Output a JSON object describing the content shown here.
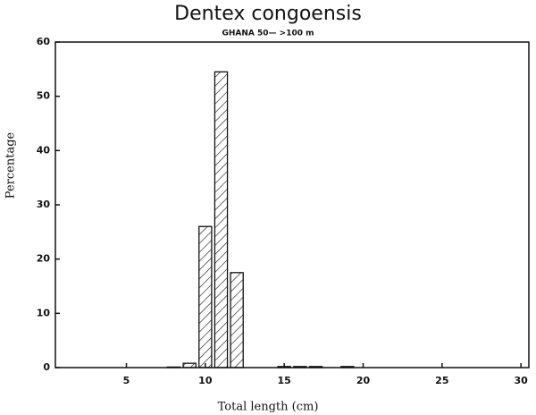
{
  "chart_data": {
    "type": "bar",
    "title": "Dentex congoensis",
    "subtitle": "GHANA  50— >100 m",
    "x_label": "Total length (cm)",
    "y_label": "Percentage",
    "x": [
      8,
      9,
      10,
      11,
      12,
      15,
      16,
      17,
      19
    ],
    "values": [
      0.1,
      0.8,
      26,
      54.5,
      17.5,
      0.2,
      0.2,
      0.2,
      0.2
    ],
    "color": "#111111",
    "xlim": [
      0.5,
      30.5
    ],
    "xticks": [
      5,
      10,
      15,
      20,
      25,
      30
    ],
    "ylim": [
      0,
      60
    ],
    "yticks": [
      0,
      10,
      20,
      30,
      40,
      50,
      60
    ]
  }
}
